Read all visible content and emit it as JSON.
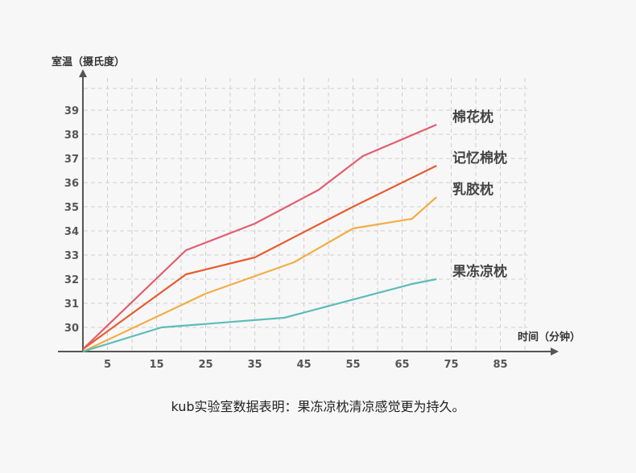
{
  "chart_data": {
    "type": "line",
    "ylabel": "室温（摄氏度）",
    "xlabel": "时间（分钟）",
    "x_ticks": [
      5,
      15,
      25,
      35,
      45,
      55,
      65,
      75,
      85
    ],
    "y_ticks": [
      30,
      31,
      32,
      33,
      34,
      35,
      36,
      37,
      38,
      39
    ],
    "xlim": [
      0,
      95
    ],
    "ylim": [
      29,
      40
    ],
    "grid": true,
    "series": [
      {
        "name": "棉花枕",
        "color": "#e25e6e",
        "x": [
          0,
          21,
          35,
          48,
          57,
          72
        ],
        "y": [
          29.1,
          33.2,
          34.3,
          35.7,
          37.1,
          38.4
        ]
      },
      {
        "name": "记忆棉枕",
        "color": "#e85a2e",
        "x": [
          0,
          21,
          35,
          55,
          72
        ],
        "y": [
          29.1,
          32.2,
          32.9,
          35.0,
          36.7
        ]
      },
      {
        "name": "乳胶枕",
        "color": "#f2ad45",
        "x": [
          0,
          25,
          43,
          55,
          67,
          72
        ],
        "y": [
          29.0,
          31.4,
          32.7,
          34.1,
          34.5,
          35.4
        ]
      },
      {
        "name": "果冻凉枕",
        "color": "#5bbdb8",
        "x": [
          0,
          16,
          41,
          67,
          72
        ],
        "y": [
          29.0,
          30.0,
          30.4,
          31.8,
          32.0
        ]
      }
    ]
  },
  "caption": "kub实验室数据表明：果冻凉枕清凉感觉更为持久。"
}
